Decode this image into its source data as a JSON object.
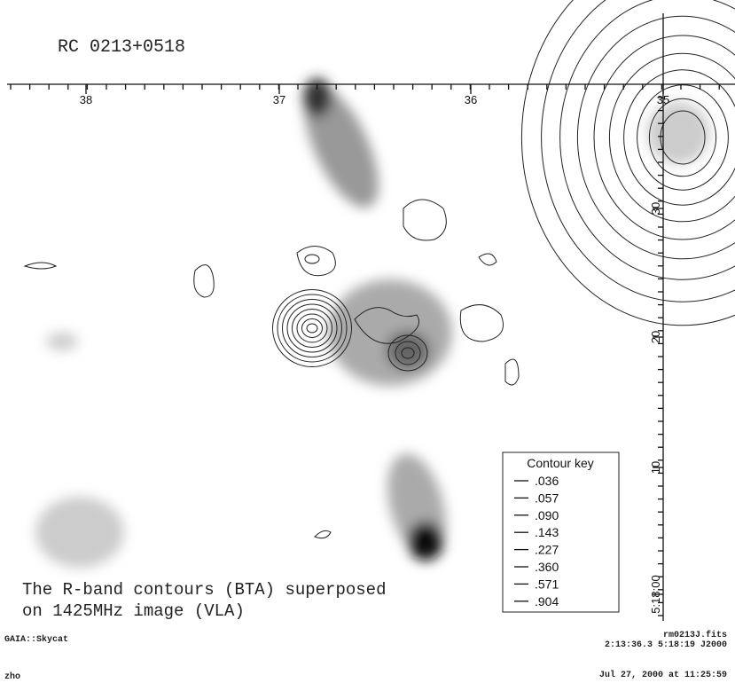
{
  "header": {
    "title": "RC 0213+0518"
  },
  "axes": {
    "top_labels": [
      "38",
      "37",
      "36",
      "35"
    ],
    "right_labels": [
      "30",
      "20",
      "10",
      "5:18:00"
    ]
  },
  "contour_key": {
    "title": "Contour key",
    "levels": [
      ".036",
      ".057",
      ".090",
      ".143",
      ".227",
      ".360",
      ".571",
      ".904"
    ]
  },
  "caption": [
    "The R-band contours (BTA) superposed",
    "on 1425MHz image (VLA)"
  ],
  "footer": {
    "app": "GAIA::Skycat",
    "file": "rm0213J.fits",
    "coords": "2:13:36.3 5:18:19 J2000",
    "user": "zho",
    "date": "Jul 27, 2000 at 11:25:59"
  }
}
